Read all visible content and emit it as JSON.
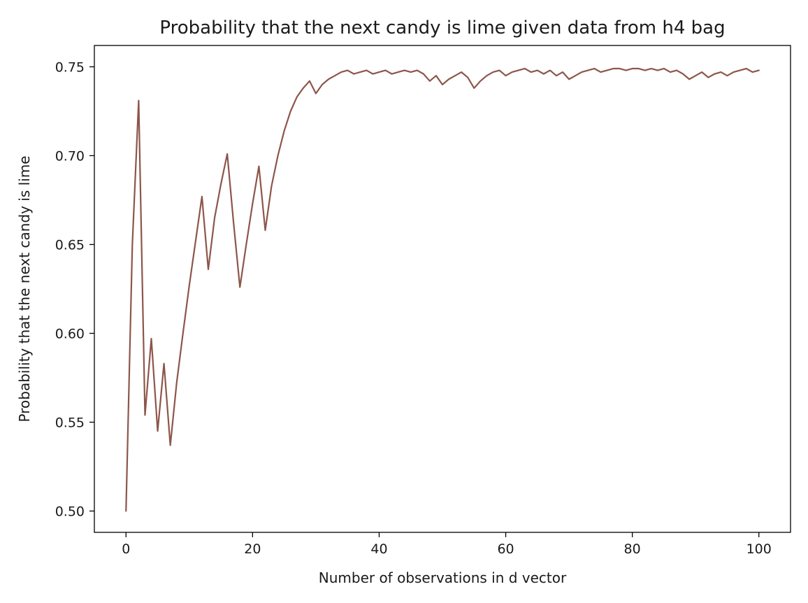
{
  "chart_data": {
    "type": "line",
    "title": "Probability that the next candy is lime given data from h4 bag",
    "xlabel": "Number of observations in d vector",
    "ylabel": "Probability that the next candy is lime",
    "xlim": [
      -5,
      105
    ],
    "ylim": [
      0.488,
      0.762
    ],
    "x_ticks": [
      0,
      20,
      40,
      60,
      80,
      100
    ],
    "x_tick_labels": [
      "0",
      "20",
      "40",
      "60",
      "80",
      "100"
    ],
    "y_ticks": [
      0.5,
      0.55,
      0.6,
      0.65,
      0.7,
      0.75
    ],
    "y_tick_labels": [
      "0.50",
      "0.55",
      "0.60",
      "0.65",
      "0.70",
      "0.75"
    ],
    "grid": false,
    "line_color": "#8c564b",
    "series": [
      {
        "x": [
          0,
          1,
          2,
          3,
          4,
          5,
          6,
          7,
          8,
          9,
          10,
          11,
          12,
          13,
          14,
          15,
          16,
          17,
          18,
          19,
          20,
          21,
          22,
          23,
          24,
          25,
          26,
          27,
          28,
          29,
          30,
          31,
          32,
          33,
          34,
          35,
          36,
          37,
          38,
          39,
          40,
          41,
          42,
          43,
          44,
          45,
          46,
          47,
          48,
          49,
          50,
          51,
          52,
          53,
          54,
          55,
          56,
          57,
          58,
          59,
          60,
          61,
          62,
          63,
          64,
          65,
          66,
          67,
          68,
          69,
          70,
          71,
          72,
          73,
          74,
          75,
          76,
          77,
          78,
          79,
          80,
          81,
          82,
          83,
          84,
          85,
          86,
          87,
          88,
          89,
          90,
          91,
          92,
          93,
          94,
          95,
          96,
          97,
          98,
          99,
          100
        ],
        "values": [
          0.5,
          0.65,
          0.731,
          0.554,
          0.597,
          0.545,
          0.583,
          0.537,
          0.572,
          0.6,
          0.627,
          0.652,
          0.677,
          0.636,
          0.665,
          0.684,
          0.701,
          0.662,
          0.626,
          0.65,
          0.673,
          0.694,
          0.658,
          0.683,
          0.7,
          0.714,
          0.725,
          0.733,
          0.738,
          0.742,
          0.735,
          0.74,
          0.743,
          0.745,
          0.747,
          0.748,
          0.746,
          0.747,
          0.748,
          0.746,
          0.747,
          0.748,
          0.746,
          0.747,
          0.748,
          0.747,
          0.748,
          0.746,
          0.742,
          0.745,
          0.74,
          0.743,
          0.745,
          0.747,
          0.744,
          0.738,
          0.742,
          0.745,
          0.747,
          0.748,
          0.745,
          0.747,
          0.748,
          0.749,
          0.747,
          0.748,
          0.746,
          0.748,
          0.745,
          0.747,
          0.743,
          0.745,
          0.747,
          0.748,
          0.749,
          0.747,
          0.748,
          0.749,
          0.749,
          0.748,
          0.749,
          0.749,
          0.748,
          0.749,
          0.748,
          0.749,
          0.747,
          0.748,
          0.746,
          0.743,
          0.745,
          0.747,
          0.744,
          0.746,
          0.747,
          0.745,
          0.747,
          0.748,
          0.749,
          0.747,
          0.748
        ]
      }
    ]
  }
}
